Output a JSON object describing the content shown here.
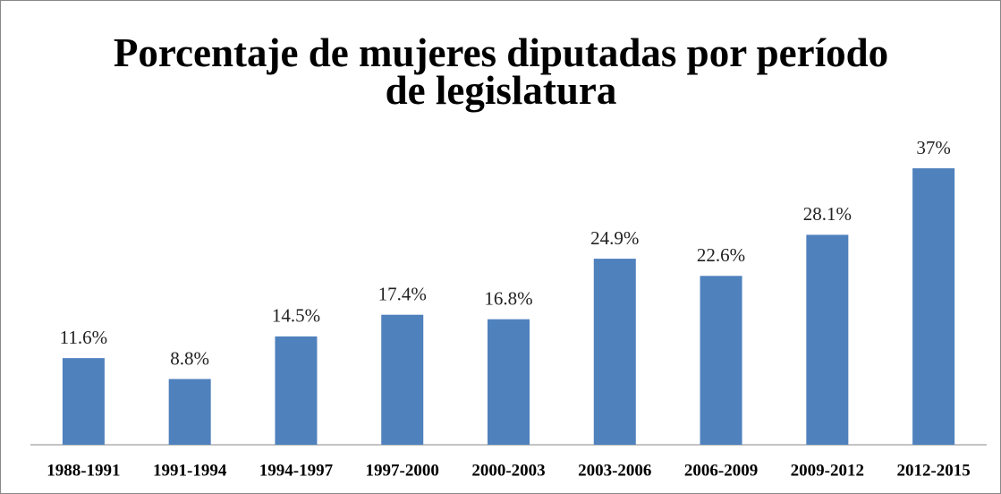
{
  "chart_data": {
    "type": "bar",
    "title": "Porcentaje de mujeres diputadas por período de legislatura",
    "categories": [
      "1988-1991",
      "1991-1994",
      "1994-1997",
      "1997-2000",
      "2000-2003",
      "2003-2006",
      "2006-2009",
      "2009-2012",
      "2012-2015"
    ],
    "values": [
      11.6,
      8.8,
      14.5,
      17.4,
      16.8,
      24.9,
      22.6,
      28.1,
      37
    ],
    "value_labels": [
      "11.6%",
      "8.8%",
      "14.5%",
      "17.4%",
      "16.8%",
      "24.9%",
      "22.6%",
      "28.1%",
      "37%"
    ],
    "color": "#4f81bd"
  }
}
